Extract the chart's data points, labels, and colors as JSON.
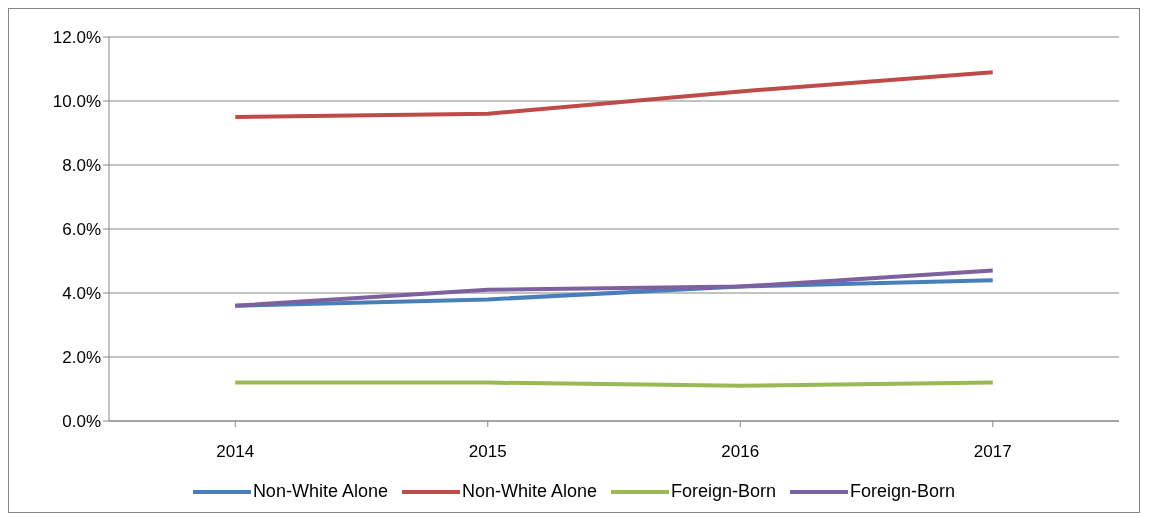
{
  "chart_data": {
    "type": "line",
    "categories": [
      "2014",
      "2015",
      "2016",
      "2017"
    ],
    "series": [
      {
        "name": "Non-White Alone",
        "color": "#4a7ebb",
        "values": [
          3.6,
          3.8,
          4.2,
          4.4
        ]
      },
      {
        "name": "Non-White Alone",
        "color": "#be4b48",
        "values": [
          9.5,
          9.6,
          10.3,
          10.9
        ]
      },
      {
        "name": "Foreign-Born",
        "color": "#98b954",
        "values": [
          1.2,
          1.2,
          1.1,
          1.2
        ]
      },
      {
        "name": "Foreign-Born",
        "color": "#7d60a0",
        "values": [
          3.6,
          4.1,
          4.2,
          4.7
        ]
      }
    ],
    "ylim": [
      0,
      12
    ],
    "yticks": [
      {
        "value": 0,
        "label": "0.0%"
      },
      {
        "value": 2,
        "label": "2.0%"
      },
      {
        "value": 4,
        "label": "4.0%"
      },
      {
        "value": 6,
        "label": "6.0%"
      },
      {
        "value": 8,
        "label": "8.0%"
      },
      {
        "value": 10,
        "label": "10.0%"
      },
      {
        "value": 12,
        "label": "12.0%"
      }
    ],
    "grid": "y",
    "legend": "bottom",
    "marker": "none",
    "line_style": "solid"
  }
}
